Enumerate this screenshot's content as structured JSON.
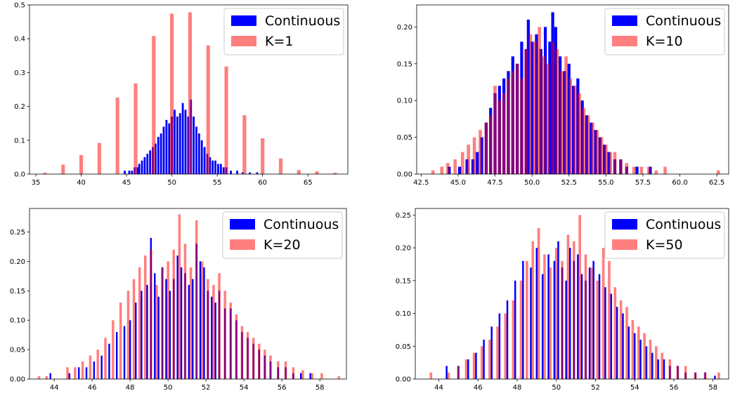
{
  "chart_data": [
    {
      "type": "bar",
      "title": "",
      "xlabel": "",
      "ylabel": "",
      "xlim": [
        34.3,
        69.4
      ],
      "ylim": [
        0,
        0.5
      ],
      "xticks": [
        35,
        40,
        45,
        50,
        55,
        60,
        65
      ],
      "yticks": [
        0.0,
        0.1,
        0.2,
        0.3,
        0.4,
        0.5
      ],
      "ytick_format": 1,
      "xtick_format": 0,
      "legend": "top-right",
      "series": [
        {
          "name": "Continuous",
          "color": "#0000ff",
          "opacity": 1.0,
          "bin_width": 0.22,
          "x": [
            44.8,
            45.3,
            45.6,
            45.9,
            46.2,
            46.4,
            46.7,
            47.0,
            47.3,
            47.6,
            47.9,
            48.2,
            48.5,
            48.8,
            49.1,
            49.4,
            49.7,
            50.0,
            50.3,
            50.6,
            50.9,
            51.2,
            51.5,
            51.8,
            52.1,
            52.4,
            52.7,
            53.0,
            53.3,
            53.6,
            53.9,
            54.2,
            54.5,
            54.8,
            55.1,
            55.4,
            55.7,
            56.0,
            56.5,
            57.2,
            57.8,
            58.6,
            59.4
          ],
          "y": [
            0.01,
            0.01,
            0.01,
            0.02,
            0.02,
            0.03,
            0.04,
            0.05,
            0.06,
            0.07,
            0.08,
            0.09,
            0.11,
            0.12,
            0.14,
            0.16,
            0.15,
            0.17,
            0.19,
            0.17,
            0.18,
            0.21,
            0.19,
            0.17,
            0.22,
            0.17,
            0.14,
            0.12,
            0.1,
            0.08,
            0.06,
            0.05,
            0.04,
            0.04,
            0.03,
            0.03,
            0.02,
            0.02,
            0.01,
            0.01,
            0.005,
            0.005,
            0.005
          ]
        },
        {
          "name": "K=1",
          "color": "#ff0000",
          "opacity": 0.5,
          "bin_width": 0.4,
          "x": [
            36,
            38,
            40,
            42,
            44,
            46,
            48,
            50,
            52,
            54,
            56,
            58,
            60,
            62,
            64,
            66,
            68
          ],
          "y": [
            0.004,
            0.028,
            0.056,
            0.092,
            0.226,
            0.268,
            0.408,
            0.474,
            0.478,
            0.38,
            0.318,
            0.174,
            0.106,
            0.046,
            0.012,
            0.008,
            0.004
          ]
        }
      ]
    },
    {
      "type": "bar",
      "title": "",
      "xlabel": "",
      "ylabel": "",
      "xlim": [
        42.2,
        63.3
      ],
      "ylim": [
        0,
        0.23
      ],
      "xticks": [
        42.5,
        45.0,
        47.5,
        50.0,
        52.5,
        55.0,
        57.5,
        60.0,
        62.5
      ],
      "yticks": [
        0.0,
        0.05,
        0.1,
        0.15,
        0.2
      ],
      "ytick_format": 2,
      "xtick_format": 1,
      "legend": "top-right",
      "series": [
        {
          "name": "Continuous",
          "color": "#0000ff",
          "opacity": 1.0,
          "bin_width": 0.2,
          "x": [
            44.4,
            45.1,
            45.6,
            46.0,
            46.3,
            46.6,
            46.9,
            47.2,
            47.5,
            47.8,
            48.1,
            48.4,
            48.7,
            49.0,
            49.3,
            49.6,
            49.75,
            50.0,
            50.3,
            50.6,
            50.9,
            51.2,
            51.4,
            51.6,
            51.9,
            52.2,
            52.5,
            52.8,
            53.1,
            53.4,
            53.7,
            54.0,
            54.3,
            54.6,
            54.9,
            55.2,
            55.6,
            56.0,
            56.4,
            57.1,
            58.0
          ],
          "y": [
            0.01,
            0.01,
            0.02,
            0.02,
            0.03,
            0.05,
            0.07,
            0.09,
            0.11,
            0.12,
            0.13,
            0.14,
            0.16,
            0.15,
            0.18,
            0.17,
            0.21,
            0.18,
            0.19,
            0.17,
            0.2,
            0.18,
            0.22,
            0.2,
            0.16,
            0.14,
            0.15,
            0.12,
            0.13,
            0.1,
            0.08,
            0.07,
            0.06,
            0.05,
            0.04,
            0.03,
            0.02,
            0.02,
            0.01,
            0.01,
            0.01
          ]
        },
        {
          "name": "K=10",
          "color": "#ff0000",
          "opacity": 0.5,
          "bin_width": 0.22,
          "x": [
            43.3,
            43.9,
            44.3,
            44.8,
            45.3,
            45.7,
            46.1,
            46.5,
            46.9,
            47.2,
            47.5,
            47.8,
            48.1,
            48.4,
            48.7,
            49.0,
            49.3,
            49.6,
            49.9,
            50.2,
            50.5,
            50.8,
            51.1,
            51.4,
            51.7,
            52.0,
            52.3,
            52.6,
            52.9,
            53.2,
            53.5,
            53.8,
            54.1,
            54.4,
            54.7,
            55.0,
            55.3,
            55.6,
            56.0,
            56.4,
            56.9,
            57.4,
            57.9,
            58.4,
            59.0,
            62.6
          ],
          "y": [
            0.005,
            0.01,
            0.015,
            0.02,
            0.03,
            0.04,
            0.05,
            0.06,
            0.07,
            0.08,
            0.12,
            0.1,
            0.11,
            0.13,
            0.14,
            0.15,
            0.13,
            0.17,
            0.19,
            0.18,
            0.2,
            0.16,
            0.15,
            0.18,
            0.17,
            0.14,
            0.16,
            0.13,
            0.12,
            0.11,
            0.09,
            0.08,
            0.07,
            0.06,
            0.05,
            0.04,
            0.03,
            0.03,
            0.02,
            0.015,
            0.01,
            0.01,
            0.01,
            0.005,
            0.01,
            0.005
          ]
        }
      ]
    },
    {
      "type": "bar",
      "title": "",
      "xlabel": "",
      "ylabel": "",
      "xlim": [
        42.7,
        59.4
      ],
      "ylim": [
        0,
        0.29
      ],
      "xticks": [
        44,
        46,
        48,
        50,
        52,
        54,
        56,
        58
      ],
      "yticks": [
        0.0,
        0.05,
        0.1,
        0.15,
        0.2,
        0.25
      ],
      "ytick_format": 2,
      "xtick_format": 0,
      "legend": "top-right",
      "series": [
        {
          "name": "Continuous",
          "color": "#0000ff",
          "opacity": 1.0,
          "bin_width": 0.09,
          "x": [
            43.8,
            44.8,
            45.3,
            45.7,
            46.1,
            46.5,
            46.9,
            47.3,
            47.7,
            48.0,
            48.3,
            48.6,
            48.9,
            49.1,
            49.3,
            49.5,
            49.7,
            49.9,
            50.1,
            50.3,
            50.5,
            50.7,
            50.9,
            51.1,
            51.3,
            51.5,
            51.7,
            51.9,
            52.1,
            52.3,
            52.5,
            52.7,
            53.0,
            53.3,
            53.6,
            53.9,
            54.2,
            54.5,
            54.8,
            55.1,
            55.4,
            55.8,
            56.2,
            56.6,
            57.0,
            57.5
          ],
          "y": [
            0.01,
            0.01,
            0.02,
            0.02,
            0.03,
            0.04,
            0.06,
            0.08,
            0.09,
            0.1,
            0.13,
            0.15,
            0.16,
            0.24,
            0.18,
            0.14,
            0.19,
            0.17,
            0.15,
            0.17,
            0.21,
            0.19,
            0.18,
            0.16,
            0.17,
            0.23,
            0.2,
            0.19,
            0.15,
            0.14,
            0.13,
            0.15,
            0.12,
            0.12,
            0.1,
            0.08,
            0.07,
            0.06,
            0.05,
            0.04,
            0.03,
            0.02,
            0.02,
            0.01,
            0.01,
            0.01
          ]
        },
        {
          "name": "K=20",
          "color": "#ff0000",
          "opacity": 0.5,
          "bin_width": 0.13,
          "x": [
            43.2,
            43.6,
            44.7,
            45.1,
            45.5,
            45.9,
            46.3,
            46.7,
            47.1,
            47.5,
            47.9,
            48.2,
            48.5,
            48.8,
            49.1,
            49.4,
            49.7,
            50.0,
            50.3,
            50.6,
            50.9,
            51.2,
            51.5,
            51.8,
            52.1,
            52.4,
            52.7,
            53.0,
            53.3,
            53.6,
            53.9,
            54.2,
            54.5,
            54.8,
            55.1,
            55.4,
            55.8,
            56.2,
            56.6,
            57.1,
            57.6,
            58.1,
            59.0
          ],
          "y": [
            0.005,
            0.005,
            0.02,
            0.02,
            0.03,
            0.04,
            0.05,
            0.07,
            0.1,
            0.13,
            0.15,
            0.17,
            0.19,
            0.21,
            0.22,
            0.16,
            0.19,
            0.2,
            0.22,
            0.28,
            0.23,
            0.19,
            0.27,
            0.2,
            0.17,
            0.16,
            0.18,
            0.15,
            0.13,
            0.11,
            0.09,
            0.08,
            0.07,
            0.06,
            0.05,
            0.04,
            0.03,
            0.03,
            0.02,
            0.015,
            0.01,
            0.01,
            0.005
          ]
        }
      ]
    },
    {
      "type": "bar",
      "title": "",
      "xlabel": "",
      "ylabel": "",
      "xlim": [
        42.8,
        58.8
      ],
      "ylim": [
        0,
        0.26
      ],
      "xticks": [
        44,
        46,
        48,
        50,
        52,
        54,
        56,
        58
      ],
      "yticks": [
        0.0,
        0.05,
        0.1,
        0.15,
        0.2,
        0.25
      ],
      "ytick_format": 2,
      "xtick_format": 0,
      "legend": "top-right",
      "series": [
        {
          "name": "Continuous",
          "color": "#0000ff",
          "opacity": 1.0,
          "bin_width": 0.09,
          "x": [
            44.4,
            45.0,
            45.5,
            45.9,
            46.3,
            46.7,
            47.1,
            47.5,
            47.9,
            48.3,
            48.7,
            49.0,
            49.3,
            49.6,
            49.9,
            50.1,
            50.3,
            50.5,
            50.7,
            50.9,
            51.1,
            51.3,
            51.5,
            51.7,
            51.9,
            52.2,
            52.5,
            52.8,
            53.1,
            53.4,
            53.7,
            54.0,
            54.3,
            54.6,
            54.9,
            55.2,
            55.5,
            55.8,
            56.2,
            56.6,
            57.1,
            57.6,
            58.1
          ],
          "y": [
            0.02,
            0.02,
            0.03,
            0.04,
            0.06,
            0.08,
            0.1,
            0.12,
            0.15,
            0.18,
            0.17,
            0.2,
            0.16,
            0.19,
            0.18,
            0.21,
            0.17,
            0.15,
            0.2,
            0.18,
            0.19,
            0.16,
            0.15,
            0.17,
            0.18,
            0.16,
            0.14,
            0.13,
            0.11,
            0.1,
            0.08,
            0.07,
            0.06,
            0.05,
            0.04,
            0.03,
            0.03,
            0.02,
            0.02,
            0.01,
            0.01,
            0.01,
            0.005
          ]
        },
        {
          "name": "K=50",
          "color": "#ff0000",
          "opacity": 0.5,
          "bin_width": 0.13,
          "x": [
            43.6,
            44.5,
            45.0,
            45.4,
            45.8,
            46.2,
            46.6,
            47.0,
            47.4,
            47.8,
            48.2,
            48.5,
            48.8,
            49.1,
            49.4,
            49.7,
            50.0,
            50.3,
            50.6,
            50.9,
            51.2,
            51.5,
            51.8,
            52.1,
            52.4,
            52.7,
            53.0,
            53.3,
            53.6,
            53.9,
            54.2,
            54.5,
            54.8,
            55.1,
            55.4,
            55.8,
            56.2,
            56.6,
            57.1,
            57.6,
            58.3
          ],
          "y": [
            0.01,
            0.01,
            0.02,
            0.03,
            0.04,
            0.05,
            0.06,
            0.08,
            0.1,
            0.12,
            0.15,
            0.18,
            0.21,
            0.23,
            0.19,
            0.17,
            0.2,
            0.18,
            0.22,
            0.21,
            0.25,
            0.19,
            0.17,
            0.15,
            0.2,
            0.18,
            0.14,
            0.12,
            0.11,
            0.09,
            0.08,
            0.07,
            0.06,
            0.05,
            0.04,
            0.03,
            0.02,
            0.02,
            0.01,
            0.01,
            0.01
          ]
        }
      ]
    }
  ]
}
